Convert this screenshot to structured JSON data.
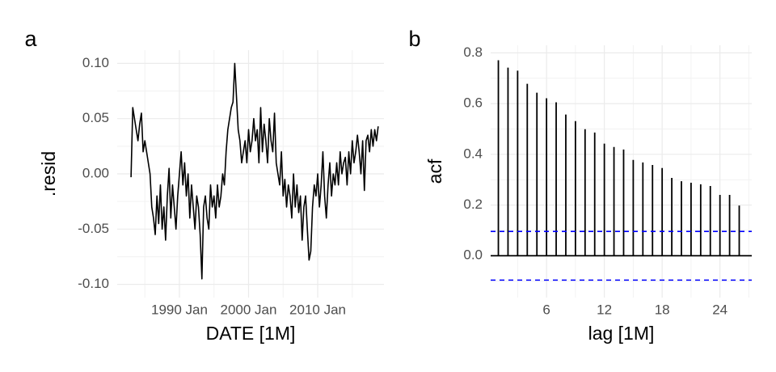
{
  "chart_data": [
    {
      "type": "line",
      "tag": "a",
      "xlabel": "DATE [1M]",
      "ylabel": ".resid",
      "color": "#000000",
      "grid": true,
      "x": [
        "1983 Jan",
        "1983 Apr",
        "1983 Jul",
        "1983 Oct",
        "1984 Jan",
        "1984 Apr",
        "1984 Jul",
        "1984 Oct",
        "1985 Jan",
        "1985 Apr",
        "1985 Jul",
        "1985 Oct",
        "1986 Jan",
        "1986 Apr",
        "1986 Jul",
        "1986 Oct",
        "1987 Jan",
        "1987 Apr",
        "1987 Jul",
        "1987 Oct",
        "1988 Jan",
        "1988 Apr",
        "1988 Jul",
        "1988 Oct",
        "1989 Jan",
        "1989 Apr",
        "1989 Jul",
        "1989 Oct",
        "1990 Jan",
        "1990 Apr",
        "1990 Jul",
        "1990 Oct",
        "1991 Jan",
        "1991 Apr",
        "1991 Jul",
        "1991 Oct",
        "1992 Jan",
        "1992 Apr",
        "1992 Jul",
        "1992 Oct",
        "1993 Jan",
        "1993 Apr",
        "1993 Jul",
        "1993 Oct",
        "1994 Jan",
        "1994 Apr",
        "1994 Jul",
        "1994 Oct",
        "1995 Jan",
        "1995 Apr",
        "1995 Jul",
        "1995 Oct",
        "1996 Jan",
        "1996 Apr",
        "1996 Jul",
        "1996 Oct",
        "1997 Jan",
        "1997 Apr",
        "1997 Jul",
        "1997 Oct",
        "1998 Jan",
        "1998 Apr",
        "1998 Jul",
        "1998 Oct",
        "1999 Jan",
        "1999 Apr",
        "1999 Jul",
        "1999 Oct",
        "2000 Jan",
        "2000 Apr",
        "2000 Jul",
        "2000 Oct",
        "2001 Jan",
        "2001 Apr",
        "2001 Jul",
        "2001 Oct",
        "2002 Jan",
        "2002 Apr",
        "2002 Jul",
        "2002 Oct",
        "2003 Jan",
        "2003 Apr",
        "2003 Jul",
        "2003 Oct",
        "2004 Jan",
        "2004 Apr",
        "2004 Jul",
        "2004 Oct",
        "2005 Jan",
        "2005 Apr",
        "2005 Jul",
        "2005 Oct",
        "2006 Jan",
        "2006 Apr",
        "2006 Jul",
        "2006 Oct",
        "2007 Jan",
        "2007 Apr",
        "2007 Jul",
        "2007 Oct",
        "2008 Jan",
        "2008 Apr",
        "2008 Jul",
        "2008 Oct",
        "2009 Jan",
        "2009 Apr",
        "2009 Jul",
        "2009 Oct",
        "2010 Jan",
        "2010 Apr",
        "2010 Jul",
        "2010 Oct",
        "2011 Jan",
        "2011 Apr",
        "2011 Jul",
        "2011 Oct",
        "2012 Jan",
        "2012 Apr",
        "2012 Jul",
        "2012 Oct",
        "2013 Jan",
        "2013 Apr",
        "2013 Jul",
        "2013 Oct",
        "2014 Jan",
        "2014 Apr",
        "2014 Jul",
        "2014 Oct",
        "2015 Jan",
        "2015 Apr",
        "2015 Jul",
        "2015 Oct",
        "2016 Jan",
        "2016 Apr",
        "2016 Jul",
        "2016 Oct",
        "2017 Jan",
        "2017 Apr",
        "2017 Jul",
        "2017 Oct",
        "2018 Jan",
        "2018 Apr",
        "2018 Jul",
        "2018 Oct"
      ],
      "values": [
        -0.003,
        0.06,
        0.05,
        0.04,
        0.03,
        0.045,
        0.055,
        0.02,
        0.03,
        0.02,
        0.01,
        0.0,
        -0.03,
        -0.04,
        -0.055,
        -0.02,
        -0.045,
        -0.01,
        -0.05,
        -0.03,
        -0.06,
        -0.02,
        0.005,
        -0.04,
        -0.01,
        -0.03,
        -0.05,
        -0.02,
        0.0,
        0.02,
        -0.01,
        0.01,
        -0.02,
        0.0,
        -0.04,
        -0.01,
        -0.03,
        -0.05,
        -0.02,
        -0.03,
        -0.055,
        -0.095,
        -0.03,
        -0.02,
        -0.04,
        -0.05,
        -0.01,
        -0.03,
        -0.02,
        -0.04,
        -0.01,
        -0.03,
        -0.02,
        0.0,
        -0.01,
        0.02,
        0.04,
        0.05,
        0.06,
        0.065,
        0.1,
        0.07,
        0.04,
        0.03,
        0.01,
        0.02,
        0.03,
        0.01,
        0.04,
        0.02,
        0.03,
        0.05,
        0.03,
        0.04,
        0.01,
        0.06,
        0.02,
        0.045,
        0.03,
        0.01,
        0.05,
        0.03,
        0.02,
        0.055,
        0.01,
        0.0,
        -0.01,
        0.02,
        -0.02,
        -0.005,
        -0.03,
        -0.01,
        -0.02,
        -0.04,
        0.0,
        -0.03,
        -0.01,
        -0.035,
        -0.02,
        -0.06,
        -0.03,
        -0.02,
        -0.05,
        -0.078,
        -0.07,
        -0.03,
        -0.01,
        -0.02,
        0.0,
        -0.03,
        -0.01,
        0.02,
        -0.02,
        -0.04,
        -0.01,
        0.01,
        -0.02,
        0.0,
        -0.01,
        0.01,
        -0.01,
        0.02,
        0.0,
        0.01,
        0.015,
        -0.01,
        0.02,
        0.0,
        0.03,
        0.01,
        0.02,
        0.035,
        0.02,
        0.0,
        0.03,
        -0.015,
        0.03,
        0.035,
        0.02,
        0.04,
        0.025,
        0.04,
        0.03,
        0.043
      ],
      "xlim": [
        "1981 Jan",
        "2019 Aug"
      ],
      "xticks": [
        "1990 Jan",
        "2000 Jan",
        "2010 Jan"
      ],
      "ylim": [
        -0.112,
        0.112
      ],
      "yticks": [
        {
          "value": -0.1,
          "label": "-0.10"
        },
        {
          "value": -0.05,
          "label": "-0.05"
        },
        {
          "value": 0,
          "label": "0.00"
        },
        {
          "value": 0.05,
          "label": "0.05"
        },
        {
          "value": 0.1,
          "label": "0.10"
        }
      ]
    },
    {
      "type": "stem",
      "tag": "b",
      "xlabel": "lag [1M]",
      "ylabel": "acf",
      "color": "#000000",
      "grid": true,
      "x": [
        1,
        2,
        3,
        4,
        5,
        6,
        7,
        8,
        9,
        10,
        11,
        12,
        13,
        14,
        15,
        16,
        17,
        18,
        19,
        20,
        21,
        22,
        23,
        24,
        25,
        26
      ],
      "values": [
        0.771,
        0.742,
        0.73,
        0.678,
        0.643,
        0.621,
        0.605,
        0.557,
        0.531,
        0.499,
        0.486,
        0.442,
        0.429,
        0.419,
        0.378,
        0.368,
        0.358,
        0.346,
        0.307,
        0.294,
        0.288,
        0.282,
        0.275,
        0.24,
        0.24,
        0.198
      ],
      "hlines": [
        0.096,
        -0.096
      ],
      "hline_color": "#0000ff",
      "xlim": [
        0.2,
        27.3
      ],
      "xticks": [
        6,
        12,
        18,
        24
      ],
      "ylim": [
        -0.165,
        0.83
      ],
      "yticks": [
        {
          "value": 0,
          "label": "0.0"
        },
        0.2,
        0.4,
        0.6,
        0.8
      ]
    }
  ]
}
